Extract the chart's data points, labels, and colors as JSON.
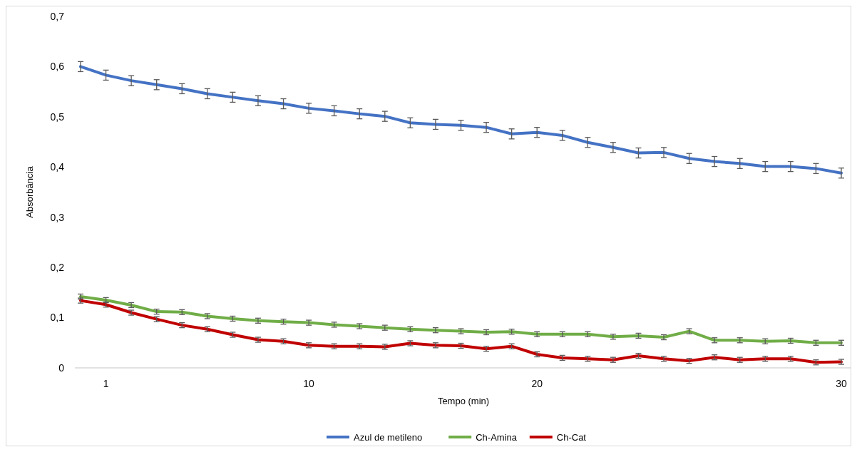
{
  "chart_data": {
    "type": "line",
    "xlabel": "Tempo (min)",
    "ylabel": "Absorbância",
    "categories": [
      null,
      "1",
      null,
      null,
      null,
      null,
      null,
      null,
      null,
      "10",
      null,
      null,
      null,
      null,
      null,
      null,
      null,
      null,
      "20",
      null,
      null,
      null,
      null,
      null,
      null,
      null,
      null,
      null,
      null,
      null,
      "30"
    ],
    "series": [
      {
        "name": "Azul de metileno",
        "color": "#4472c4",
        "values": [
          0.6,
          0.583,
          0.572,
          0.564,
          0.556,
          0.546,
          0.539,
          0.532,
          0.526,
          0.517,
          0.512,
          0.506,
          0.501,
          0.488,
          0.485,
          0.483,
          0.479,
          0.466,
          0.469,
          0.463,
          0.449,
          0.439,
          0.428,
          0.429,
          0.417,
          0.411,
          0.407,
          0.401,
          0.401,
          0.397,
          0.388
        ],
        "errors": [
          0.01,
          0.01,
          0.01,
          0.01,
          0.01,
          0.01,
          0.01,
          0.01,
          0.01,
          0.01,
          0.01,
          0.01,
          0.01,
          0.01,
          0.01,
          0.01,
          0.01,
          0.01,
          0.01,
          0.01,
          0.01,
          0.01,
          0.01,
          0.01,
          0.01,
          0.01,
          0.01,
          0.01,
          0.01,
          0.01,
          0.01
        ]
      },
      {
        "name": "Ch-Amina",
        "color": "#70ad47",
        "values": [
          0.142,
          0.135,
          0.125,
          0.112,
          0.111,
          0.103,
          0.098,
          0.094,
          0.092,
          0.09,
          0.086,
          0.083,
          0.08,
          0.077,
          0.075,
          0.073,
          0.071,
          0.072,
          0.067,
          0.067,
          0.067,
          0.062,
          0.064,
          0.061,
          0.073,
          0.055,
          0.055,
          0.053,
          0.054,
          0.05,
          0.05
        ],
        "errors": [
          0.005,
          0.005,
          0.005,
          0.005,
          0.005,
          0.005,
          0.005,
          0.005,
          0.005,
          0.005,
          0.005,
          0.005,
          0.005,
          0.005,
          0.005,
          0.005,
          0.005,
          0.005,
          0.005,
          0.005,
          0.005,
          0.005,
          0.005,
          0.005,
          0.005,
          0.005,
          0.005,
          0.005,
          0.005,
          0.005,
          0.005
        ]
      },
      {
        "name": "Ch-Cat",
        "color": "#c00000",
        "values": [
          0.134,
          0.126,
          0.11,
          0.097,
          0.085,
          0.077,
          0.066,
          0.056,
          0.053,
          0.045,
          0.043,
          0.043,
          0.042,
          0.049,
          0.045,
          0.044,
          0.038,
          0.043,
          0.027,
          0.02,
          0.018,
          0.016,
          0.024,
          0.018,
          0.014,
          0.021,
          0.016,
          0.018,
          0.018,
          0.011,
          0.012
        ],
        "errors": [
          0.005,
          0.005,
          0.005,
          0.005,
          0.005,
          0.005,
          0.005,
          0.005,
          0.005,
          0.005,
          0.005,
          0.005,
          0.005,
          0.005,
          0.005,
          0.005,
          0.005,
          0.005,
          0.005,
          0.005,
          0.005,
          0.005,
          0.005,
          0.005,
          0.005,
          0.005,
          0.005,
          0.005,
          0.005,
          0.005,
          0.005
        ]
      }
    ],
    "ylim": [
      0,
      0.7
    ],
    "yticks": [
      0,
      {
        "value": 0.1,
        "label": "0,1"
      },
      {
        "value": 0.2,
        "label": "0,2"
      },
      {
        "value": 0.3,
        "label": "0,3"
      },
      {
        "value": 0.4,
        "label": "0,4"
      },
      {
        "value": 0.5,
        "label": "0,5"
      },
      {
        "value": 0.6,
        "label": "0,6"
      },
      {
        "value": 0.7,
        "label": "0,7"
      }
    ],
    "legend": "bottom",
    "line_style": "solid",
    "marker": "none"
  }
}
